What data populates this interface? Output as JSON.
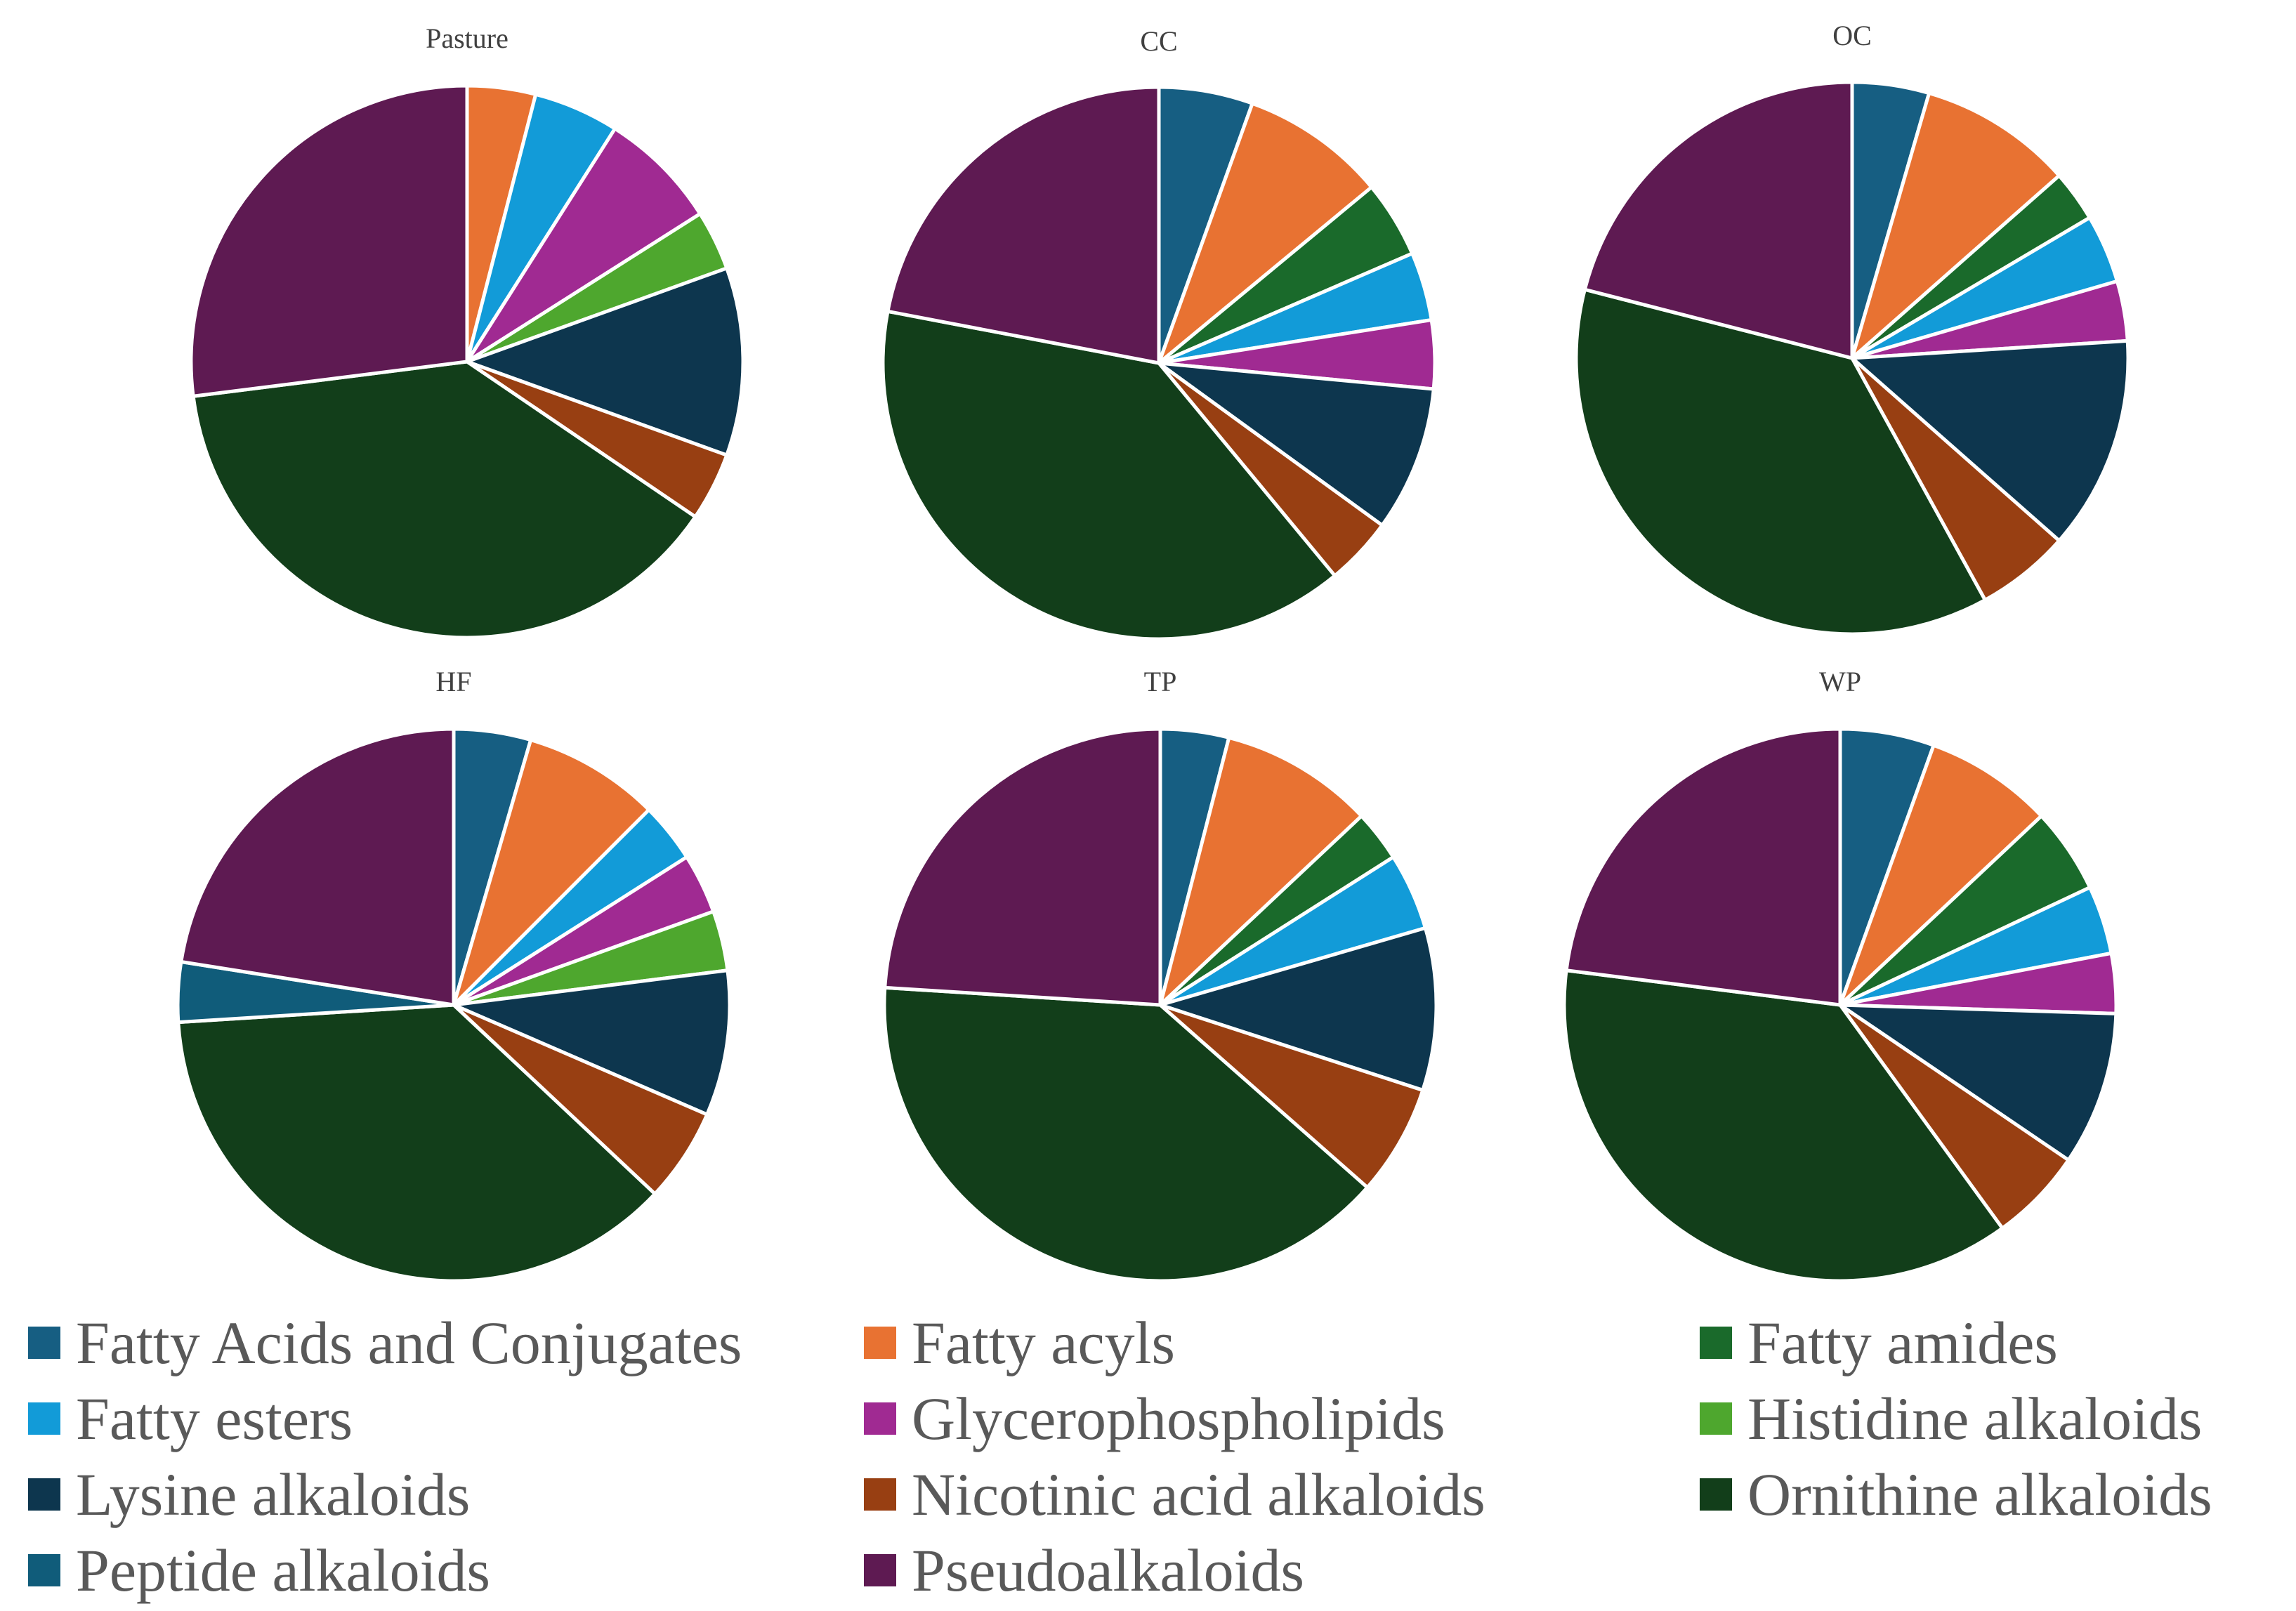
{
  "categories": [
    {
      "name": "Fatty Acids and Conjugates",
      "color": "#165e82"
    },
    {
      "name": "Fatty acyls",
      "color": "#e87232"
    },
    {
      "name": "Fatty amides",
      "color": "#1a6a2b"
    },
    {
      "name": "Fatty esters",
      "color": "#129bd8"
    },
    {
      "name": "Glycerophospholipids",
      "color": "#a02a92"
    },
    {
      "name": "Histidine alkaloids",
      "color": "#4ea72e"
    },
    {
      "name": "Lysine alkaloids",
      "color": "#0d364e"
    },
    {
      "name": "Nicotinic acid alkaloids",
      "color": "#983f12"
    },
    {
      "name": "Ornithine alkaloids",
      "color": "#123e1a"
    },
    {
      "name": "Peptide alkaloids",
      "color": "#105c7a"
    },
    {
      "name": "Pseudoalkaloids",
      "color": "#5e1a52"
    }
  ],
  "chart_data": [
    {
      "type": "pie",
      "title": "Pasture",
      "labels": [
        "Fatty Acids and Conjugates",
        "Fatty acyls",
        "Fatty amides",
        "Fatty esters",
        "Glycerophospholipids",
        "Histidine alkaloids",
        "Lysine alkaloids",
        "Nicotinic acid alkaloids",
        "Ornithine alkaloids",
        "Peptide alkaloids",
        "Pseudoalkaloids"
      ],
      "values": [
        0,
        4,
        0,
        5,
        7,
        3.5,
        11,
        4,
        38.5,
        0,
        27
      ]
    },
    {
      "type": "pie",
      "title": "CC",
      "labels": [
        "Fatty Acids and Conjugates",
        "Fatty acyls",
        "Fatty amides",
        "Fatty esters",
        "Glycerophospholipids",
        "Histidine alkaloids",
        "Lysine alkaloids",
        "Nicotinic acid alkaloids",
        "Ornithine alkaloids",
        "Peptide alkaloids",
        "Pseudoalkaloids"
      ],
      "values": [
        5.5,
        8.5,
        4.5,
        4,
        4,
        0,
        8.5,
        4,
        39,
        0,
        22
      ]
    },
    {
      "type": "pie",
      "title": "OC",
      "labels": [
        "Fatty Acids and Conjugates",
        "Fatty acyls",
        "Fatty amides",
        "Fatty esters",
        "Glycerophospholipids",
        "Histidine alkaloids",
        "Lysine alkaloids",
        "Nicotinic acid alkaloids",
        "Ornithine alkaloids",
        "Peptide alkaloids",
        "Pseudoalkaloids"
      ],
      "values": [
        4.5,
        9,
        3,
        4,
        3.5,
        0,
        12.5,
        5.5,
        37,
        0,
        21
      ]
    },
    {
      "type": "pie",
      "title": "HF",
      "labels": [
        "Fatty Acids and Conjugates",
        "Fatty acyls",
        "Fatty amides",
        "Fatty esters",
        "Glycerophospholipids",
        "Histidine alkaloids",
        "Lysine alkaloids",
        "Nicotinic acid alkaloids",
        "Ornithine alkaloids",
        "Peptide alkaloids",
        "Pseudoalkaloids"
      ],
      "values": [
        4.5,
        8,
        0,
        3.5,
        3.5,
        3.5,
        8.5,
        5.5,
        37,
        3.5,
        22.5
      ]
    },
    {
      "type": "pie",
      "title": "TP",
      "labels": [
        "Fatty Acids and Conjugates",
        "Fatty acyls",
        "Fatty amides",
        "Fatty esters",
        "Glycerophospholipids",
        "Histidine alkaloids",
        "Lysine alkaloids",
        "Nicotinic acid alkaloids",
        "Ornithine alkaloids",
        "Peptide alkaloids",
        "Pseudoalkaloids"
      ],
      "values": [
        4,
        9,
        3,
        4.5,
        0,
        0,
        9.5,
        6.5,
        39.5,
        0,
        24
      ]
    },
    {
      "type": "pie",
      "title": "WP",
      "labels": [
        "Fatty Acids and Conjugates",
        "Fatty acyls",
        "Fatty amides",
        "Fatty esters",
        "Glycerophospholipids",
        "Histidine alkaloids",
        "Lysine alkaloids",
        "Nicotinic acid alkaloids",
        "Ornithine alkaloids",
        "Peptide alkaloids",
        "Pseudoalkaloids"
      ],
      "values": [
        5.5,
        7.5,
        5,
        4,
        3.5,
        0,
        9,
        5.5,
        37,
        0,
        23
      ]
    }
  ]
}
